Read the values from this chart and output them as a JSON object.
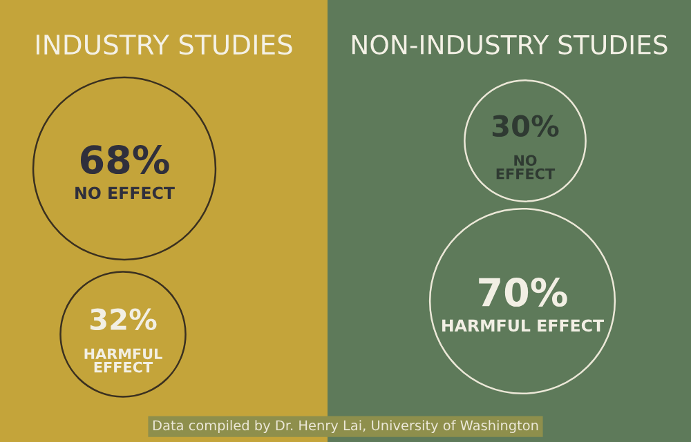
{
  "chart_data": [
    {
      "type": "other",
      "title": "INDUSTRY STUDIES",
      "categories": [
        "NO EFFECT",
        "HARMFUL EFFECT"
      ],
      "values": [
        68,
        32
      ],
      "value_labels": [
        "68%",
        "32%"
      ]
    },
    {
      "type": "other",
      "title": "NON-INDUSTRY STUDIES",
      "categories": [
        "NO EFFECT",
        "HARMFUL EFFECT"
      ],
      "values": [
        30,
        70
      ],
      "value_labels": [
        "30%",
        "70%"
      ],
      "annotations": [
        "Data compiled by Dr. Henry Lai, University of Washington"
      ]
    }
  ]
}
